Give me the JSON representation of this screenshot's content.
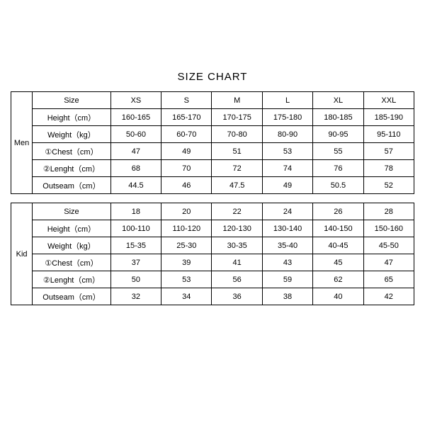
{
  "title": "SIZE CHART",
  "men": {
    "category": "Men",
    "rows": [
      {
        "label": "Size",
        "values": [
          "XS",
          "S",
          "M",
          "L",
          "XL",
          "XXL"
        ]
      },
      {
        "label": "Height（cm）",
        "values": [
          "160-165",
          "165-170",
          "170-175",
          "175-180",
          "180-185",
          "185-190"
        ]
      },
      {
        "label": "Weight（kg）",
        "values": [
          "50-60",
          "60-70",
          "70-80",
          "80-90",
          "90-95",
          "95-110"
        ]
      },
      {
        "label": "①Chest（cm）",
        "values": [
          "47",
          "49",
          "51",
          "53",
          "55",
          "57"
        ]
      },
      {
        "label": "②Lenght（cm）",
        "values": [
          "68",
          "70",
          "72",
          "74",
          "76",
          "78"
        ]
      },
      {
        "label": "Outseam（cm）",
        "values": [
          "44.5",
          "46",
          "47.5",
          "49",
          "50.5",
          "52"
        ]
      }
    ]
  },
  "kid": {
    "category": "Kid",
    "rows": [
      {
        "label": "Size",
        "values": [
          "18",
          "20",
          "22",
          "24",
          "26",
          "28"
        ]
      },
      {
        "label": "Height（cm）",
        "values": [
          "100-110",
          "110-120",
          "120-130",
          "130-140",
          "140-150",
          "150-160"
        ]
      },
      {
        "label": "Weight（kg）",
        "values": [
          "15-35",
          "25-30",
          "30-35",
          "35-40",
          "40-45",
          "45-50"
        ]
      },
      {
        "label": "①Chest（cm）",
        "values": [
          "37",
          "39",
          "41",
          "43",
          "45",
          "47"
        ]
      },
      {
        "label": "②Lenght（cm）",
        "values": [
          "50",
          "53",
          "56",
          "59",
          "62",
          "65"
        ]
      },
      {
        "label": "Outseam（cm）",
        "values": [
          "32",
          "34",
          "36",
          "38",
          "40",
          "42"
        ]
      }
    ]
  }
}
